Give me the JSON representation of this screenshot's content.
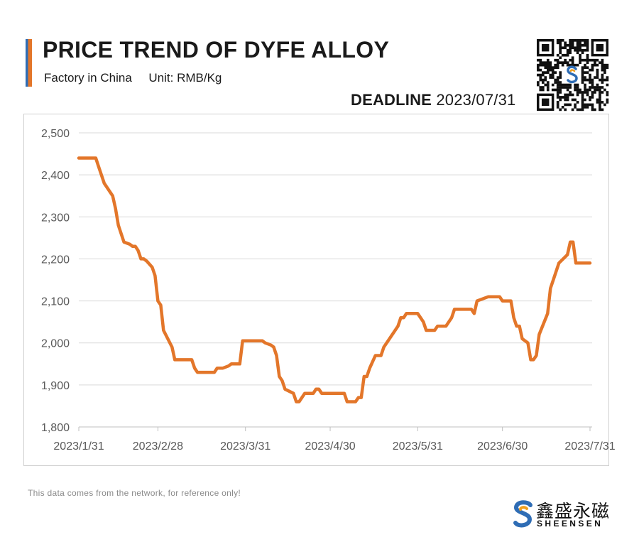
{
  "header": {
    "title": "PRICE TREND OF DYFE ALLOY",
    "subtitle_factory": "Factory in China",
    "subtitle_unit": "Unit: RMB/Kg",
    "deadline_label": "DEADLINE",
    "deadline_date": "2023/07/31"
  },
  "footer": {
    "note": "This data comes from the network, for reference only!"
  },
  "brand": {
    "name_cn": "鑫盛永磁",
    "name_en": "SHEENSEN"
  },
  "colors": {
    "line": "#e3762a",
    "accent_blue": "#2f6db5",
    "accent_orange": "#e3762a",
    "grid": "#d9d9d9",
    "axis_text": "#595959"
  },
  "chart_data": {
    "type": "line",
    "ylim": [
      1800,
      2500
    ],
    "yticks": [
      "1,800",
      "1,900",
      "2,000",
      "2,100",
      "2,200",
      "2,300",
      "2,400",
      "2,500"
    ],
    "xlim": [
      "2023-01-31",
      "2023-07-31"
    ],
    "xticks": [
      {
        "date": "2023-01-31",
        "label": "2023/1/31"
      },
      {
        "date": "2023-02-28",
        "label": "2023/2/28"
      },
      {
        "date": "2023-03-31",
        "label": "2023/3/31"
      },
      {
        "date": "2023-04-30",
        "label": "2023/4/30"
      },
      {
        "date": "2023-05-31",
        "label": "2023/5/31"
      },
      {
        "date": "2023-06-30",
        "label": "2023/6/30"
      },
      {
        "date": "2023-07-31",
        "label": "2023/7/31"
      }
    ],
    "grid": true,
    "series": [
      {
        "points": [
          [
            "2023-01-31",
            2440
          ],
          [
            "2023-02-06",
            2440
          ],
          [
            "2023-02-07",
            2420
          ],
          [
            "2023-02-09",
            2380
          ],
          [
            "2023-02-12",
            2350
          ],
          [
            "2023-02-13",
            2320
          ],
          [
            "2023-02-14",
            2280
          ],
          [
            "2023-02-16",
            2240
          ],
          [
            "2023-02-18",
            2235
          ],
          [
            "2023-02-19",
            2230
          ],
          [
            "2023-02-20",
            2230
          ],
          [
            "2023-02-21",
            2220
          ],
          [
            "2023-02-22",
            2200
          ],
          [
            "2023-02-23",
            2200
          ],
          [
            "2023-02-24",
            2195
          ],
          [
            "2023-02-26",
            2180
          ],
          [
            "2023-02-27",
            2160
          ],
          [
            "2023-02-28",
            2100
          ],
          [
            "2023-03-01",
            2090
          ],
          [
            "2023-03-02",
            2030
          ],
          [
            "2023-03-05",
            1990
          ],
          [
            "2023-03-06",
            1960
          ],
          [
            "2023-03-12",
            1960
          ],
          [
            "2023-03-13",
            1940
          ],
          [
            "2023-03-14",
            1930
          ],
          [
            "2023-03-20",
            1930
          ],
          [
            "2023-03-21",
            1940
          ],
          [
            "2023-03-23",
            1940
          ],
          [
            "2023-03-25",
            1945
          ],
          [
            "2023-03-26",
            1950
          ],
          [
            "2023-03-29",
            1950
          ],
          [
            "2023-03-30",
            2005
          ],
          [
            "2023-04-06",
            2005
          ],
          [
            "2023-04-07",
            2000
          ],
          [
            "2023-04-09",
            1995
          ],
          [
            "2023-04-10",
            1990
          ],
          [
            "2023-04-11",
            1970
          ],
          [
            "2023-04-12",
            1920
          ],
          [
            "2023-04-13",
            1910
          ],
          [
            "2023-04-14",
            1890
          ],
          [
            "2023-04-17",
            1880
          ],
          [
            "2023-04-18",
            1860
          ],
          [
            "2023-04-19",
            1860
          ],
          [
            "2023-04-21",
            1880
          ],
          [
            "2023-04-24",
            1880
          ],
          [
            "2023-04-25",
            1890
          ],
          [
            "2023-04-26",
            1890
          ],
          [
            "2023-04-27",
            1880
          ],
          [
            "2023-05-05",
            1880
          ],
          [
            "2023-05-06",
            1860
          ],
          [
            "2023-05-09",
            1860
          ],
          [
            "2023-05-10",
            1870
          ],
          [
            "2023-05-11",
            1870
          ],
          [
            "2023-05-12",
            1920
          ],
          [
            "2023-05-13",
            1920
          ],
          [
            "2023-05-14",
            1940
          ],
          [
            "2023-05-16",
            1970
          ],
          [
            "2023-05-18",
            1970
          ],
          [
            "2023-05-19",
            1990
          ],
          [
            "2023-05-24",
            2040
          ],
          [
            "2023-05-25",
            2060
          ],
          [
            "2023-05-26",
            2060
          ],
          [
            "2023-05-27",
            2070
          ],
          [
            "2023-05-31",
            2070
          ],
          [
            "2023-06-02",
            2050
          ],
          [
            "2023-06-03",
            2030
          ],
          [
            "2023-06-06",
            2030
          ],
          [
            "2023-06-07",
            2040
          ],
          [
            "2023-06-10",
            2040
          ],
          [
            "2023-06-12",
            2060
          ],
          [
            "2023-06-13",
            2080
          ],
          [
            "2023-06-19",
            2080
          ],
          [
            "2023-06-20",
            2070
          ],
          [
            "2023-06-21",
            2100
          ],
          [
            "2023-06-25",
            2110
          ],
          [
            "2023-06-29",
            2110
          ],
          [
            "2023-06-30",
            2100
          ],
          [
            "2023-07-03",
            2100
          ],
          [
            "2023-07-04",
            2060
          ],
          [
            "2023-07-05",
            2040
          ],
          [
            "2023-07-06",
            2040
          ],
          [
            "2023-07-07",
            2010
          ],
          [
            "2023-07-09",
            2000
          ],
          [
            "2023-07-10",
            1960
          ],
          [
            "2023-07-11",
            1960
          ],
          [
            "2023-07-12",
            1970
          ],
          [
            "2023-07-13",
            2020
          ],
          [
            "2023-07-16",
            2070
          ],
          [
            "2023-07-17",
            2130
          ],
          [
            "2023-07-18",
            2150
          ],
          [
            "2023-07-20",
            2190
          ],
          [
            "2023-07-23",
            2210
          ],
          [
            "2023-07-24",
            2240
          ],
          [
            "2023-07-25",
            2240
          ],
          [
            "2023-07-26",
            2190
          ],
          [
            "2023-07-31",
            2190
          ]
        ]
      }
    ]
  }
}
